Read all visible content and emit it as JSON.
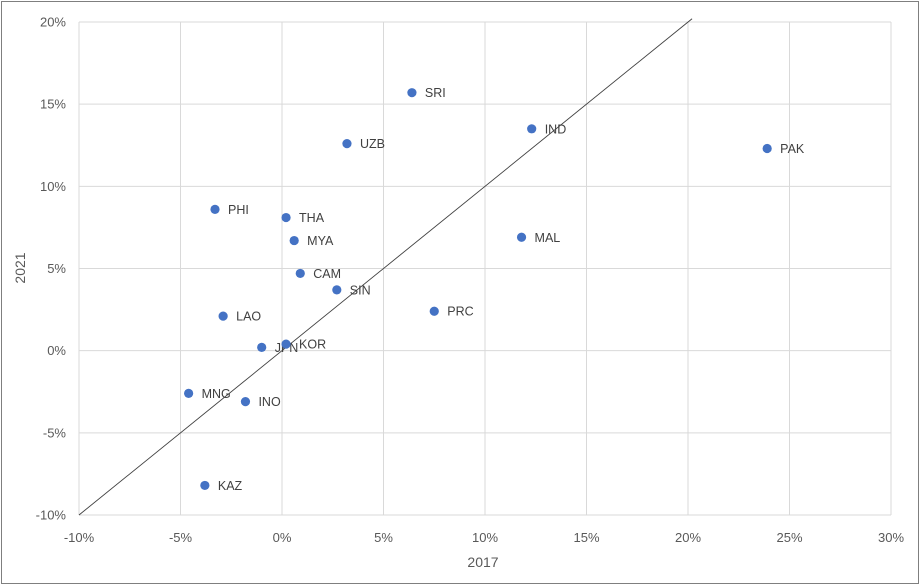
{
  "chart_data": {
    "type": "scatter",
    "xlabel": "2017",
    "ylabel": "2021",
    "xlim": [
      -10,
      30
    ],
    "ylim": [
      -10,
      20
    ],
    "x_ticks": [
      -10,
      -5,
      0,
      5,
      10,
      15,
      20,
      25,
      30
    ],
    "y_ticks": [
      -10,
      -5,
      0,
      5,
      10,
      15,
      20
    ],
    "x_tick_labels": [
      "-10%",
      "-5%",
      "0%",
      "5%",
      "10%",
      "15%",
      "20%",
      "25%",
      "30%"
    ],
    "y_tick_labels": [
      "-10%",
      "-5%",
      "0%",
      "5%",
      "10%",
      "15%",
      "20%"
    ],
    "grid": true,
    "reference_line": {
      "from": [
        -10,
        -10
      ],
      "to": [
        20.2,
        20.2
      ]
    },
    "marker_color": "#4472c4",
    "line_color": "#404040",
    "grid_color": "#d9d9d9",
    "points": [
      {
        "label": "SRI",
        "x": 6.4,
        "y": 15.7
      },
      {
        "label": "IND",
        "x": 12.3,
        "y": 13.5
      },
      {
        "label": "UZB",
        "x": 3.2,
        "y": 12.6
      },
      {
        "label": "PAK",
        "x": 23.9,
        "y": 12.3
      },
      {
        "label": "PHI",
        "x": -3.3,
        "y": 8.6
      },
      {
        "label": "THA",
        "x": 0.2,
        "y": 8.1
      },
      {
        "label": "MYA",
        "x": 0.6,
        "y": 6.7
      },
      {
        "label": "MAL",
        "x": 11.8,
        "y": 6.9
      },
      {
        "label": "CAM",
        "x": 0.9,
        "y": 4.7
      },
      {
        "label": "SIN",
        "x": 2.7,
        "y": 3.7
      },
      {
        "label": "PRC",
        "x": 7.5,
        "y": 2.4
      },
      {
        "label": "LAO",
        "x": -2.9,
        "y": 2.1
      },
      {
        "label": "JPN",
        "x": -1.0,
        "y": 0.2
      },
      {
        "label": "KOR",
        "x": 0.2,
        "y": 0.4
      },
      {
        "label": "MNG",
        "x": -4.6,
        "y": -2.6
      },
      {
        "label": "INO",
        "x": -1.8,
        "y": -3.1
      },
      {
        "label": "KAZ",
        "x": -3.8,
        "y": -8.2
      }
    ]
  }
}
